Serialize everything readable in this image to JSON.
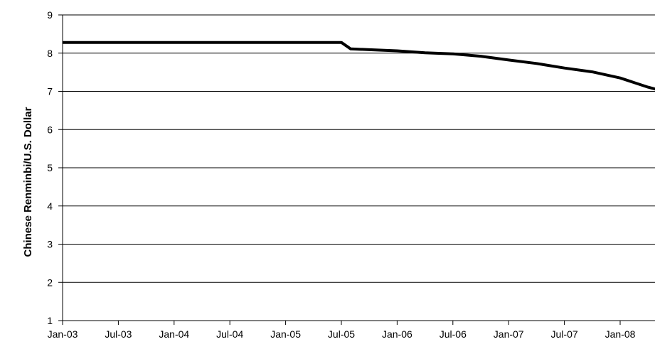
{
  "chart_data": {
    "type": "line",
    "title": "",
    "xlabel": "",
    "ylabel": "Chinese Renminbi/U.S. Dollar",
    "ylim": [
      1,
      9
    ],
    "yticks": [
      1,
      2,
      3,
      4,
      5,
      6,
      7,
      8,
      9
    ],
    "xticks": [
      "Jan-03",
      "Jul-03",
      "Jan-04",
      "Jul-04",
      "Jan-05",
      "Jul-05",
      "Jan-06",
      "Jul-06",
      "Jan-07",
      "Jul-07",
      "Jan-08"
    ],
    "xlim": [
      "2003-01",
      "2008-07"
    ],
    "grid": "horizontal",
    "legend": "none",
    "colors": {
      "line": "#000000",
      "grid": "#000000",
      "background": "#ffffff"
    },
    "series": [
      {
        "x": [
          "2003-01",
          "2003-07",
          "2004-01",
          "2004-07",
          "2005-01",
          "2005-07",
          "2005-08",
          "2005-10",
          "2006-01",
          "2006-04",
          "2006-07",
          "2006-10",
          "2007-01",
          "2007-04",
          "2007-07",
          "2007-10",
          "2008-01",
          "2008-04",
          "2008-06",
          "2008-07"
        ],
        "values": [
          8.28,
          8.28,
          8.28,
          8.28,
          8.28,
          8.28,
          8.11,
          8.09,
          8.06,
          8.01,
          7.98,
          7.92,
          7.82,
          7.73,
          7.61,
          7.51,
          7.35,
          7.11,
          6.98,
          6.97
        ]
      }
    ]
  }
}
